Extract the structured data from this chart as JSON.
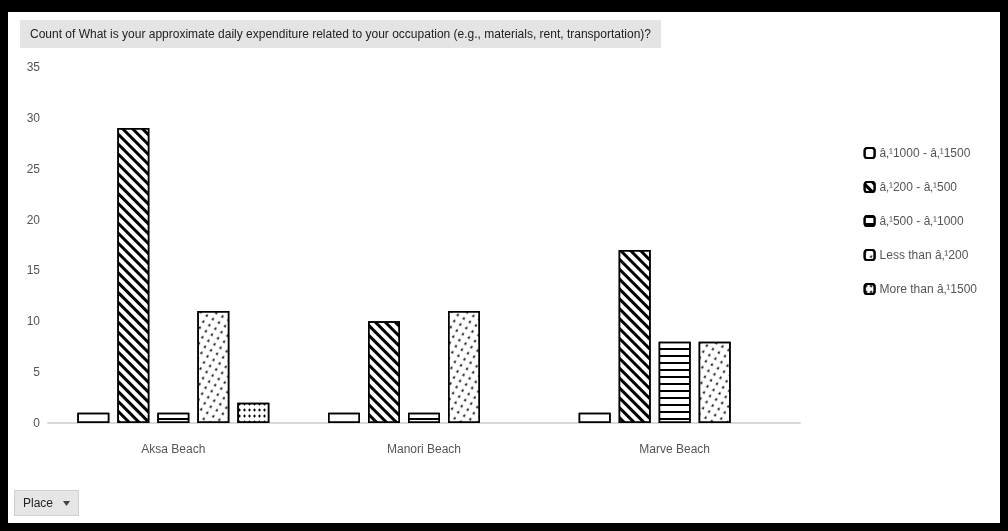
{
  "chart_data": {
    "type": "bar",
    "title": "Count of What is your approximate daily expenditure related to your occupation (e.g., materials, rent, transportation)?",
    "categories": [
      "Aksa Beach",
      "Manori Beach",
      "Marve Beach"
    ],
    "series": [
      {
        "name": "â‚¹1000 - â‚¹1500",
        "color": "#000000",
        "values": [
          1,
          1,
          1
        ]
      },
      {
        "name": "â‚¹200 - â‚¹500",
        "color": "#000000",
        "values": [
          29,
          10,
          17
        ]
      },
      {
        "name": "â‚¹500 - â‚¹1000",
        "color": "#000000",
        "values": [
          1,
          1,
          8
        ]
      },
      {
        "name": "Less than â‚¹200",
        "color": "#000000",
        "values": [
          11,
          11,
          8
        ]
      },
      {
        "name": "More than â‚¹1500",
        "color": "#000000",
        "values": [
          2,
          null,
          null
        ]
      }
    ],
    "ylim": [
      0,
      35
    ],
    "yticks": [
      0,
      5,
      10,
      15,
      20,
      25,
      30,
      35
    ],
    "grid": false,
    "legend": "right",
    "annotations": [
      "Place"
    ]
  }
}
